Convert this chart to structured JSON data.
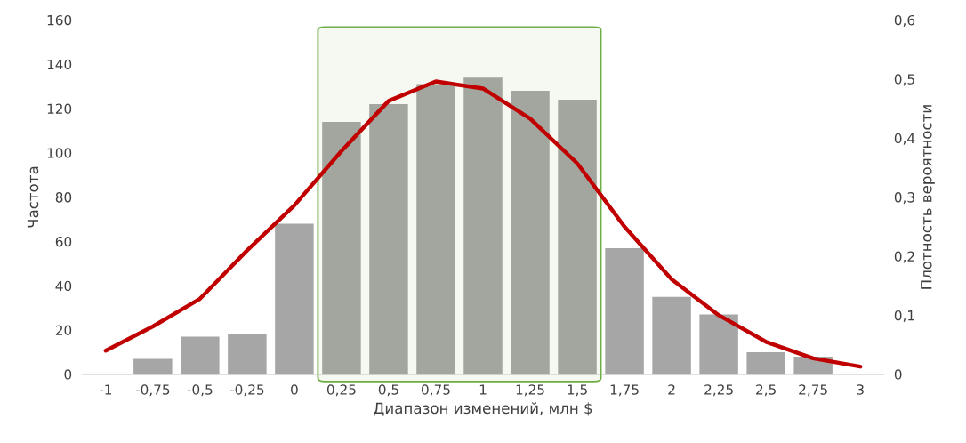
{
  "chart_data": {
    "type": "bar",
    "xlabel": "Диапазон изменений, млн $",
    "ylabel": "Частота",
    "y2label": "Плотность вероятности",
    "categories": [
      "-1",
      "-0,75",
      "-0,5",
      "-0,25",
      "0",
      "0,25",
      "0,5",
      "0,75",
      "1",
      "1,25",
      "1,5",
      "1,75",
      "2",
      "2,25",
      "2,5",
      "2,75",
      "3"
    ],
    "series": [
      {
        "color": "#a6a6a6",
        "values": [
          0,
          7,
          17,
          18,
          68,
          114,
          122,
          131,
          134,
          128,
          124,
          57,
          35,
          27,
          10,
          8,
          0
        ]
      },
      {
        "type": "line",
        "axis": "y2",
        "color": "#c00000",
        "line_style": "solid",
        "values": [
          0.04,
          0.081,
          0.128,
          0.21,
          0.286,
          0.378,
          0.463,
          0.496,
          0.484,
          0.433,
          0.357,
          0.25,
          0.161,
          0.1,
          0.055,
          0.027,
          0.013
        ]
      }
    ],
    "ylim": [
      0,
      160
    ],
    "yticks": [
      0,
      20,
      40,
      60,
      80,
      100,
      120,
      140,
      160
    ],
    "y2lim": [
      0,
      0.6
    ],
    "y2ticks": [
      {
        "value": 0,
        "label": "0"
      },
      {
        "value": 0.1,
        "label": "0,1"
      },
      {
        "value": 0.2,
        "label": "0,2"
      },
      {
        "value": 0.3,
        "label": "0,3"
      },
      {
        "value": 0.4,
        "label": "0,4"
      },
      {
        "value": 0.5,
        "label": "0,5"
      },
      {
        "value": 0.6,
        "label": "0,6"
      }
    ],
    "bands": [
      {
        "axis": "x",
        "from": "0,25",
        "to": "1,5",
        "color": "#70ad47"
      }
    ],
    "grid": false,
    "legend": false
  }
}
